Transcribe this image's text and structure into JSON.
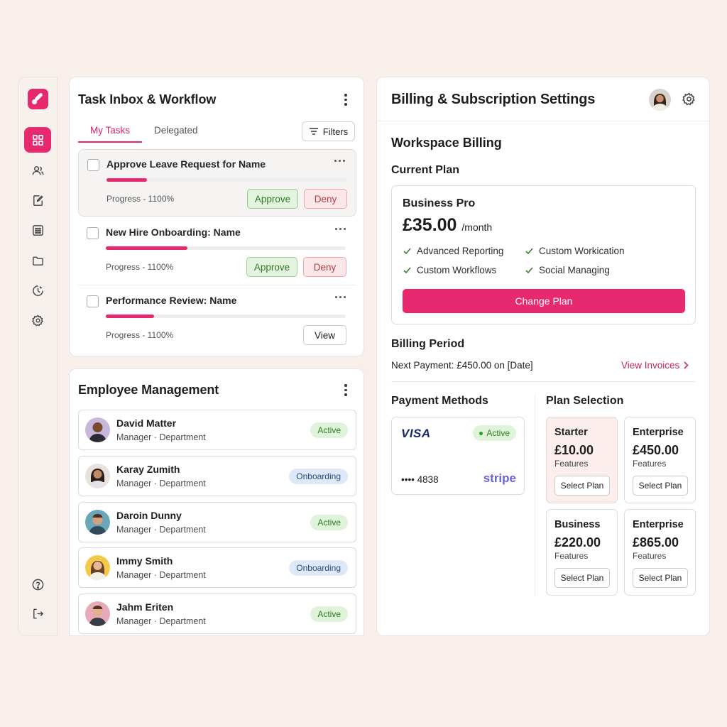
{
  "sidebar": {
    "items": [
      {
        "icon": "dashboard-icon",
        "active": true
      },
      {
        "icon": "users-icon"
      },
      {
        "icon": "tasks-icon"
      },
      {
        "icon": "calendar-icon"
      },
      {
        "icon": "folder-icon"
      },
      {
        "icon": "analytics-icon"
      },
      {
        "icon": "settings-icon"
      }
    ],
    "bottom": [
      {
        "icon": "help-icon"
      },
      {
        "icon": "logout-icon"
      }
    ]
  },
  "task_inbox": {
    "title": "Task Inbox & Workflow",
    "tabs": [
      {
        "label": "My Tasks",
        "active": true
      },
      {
        "label": "Delegated"
      }
    ],
    "filters_label": "Filters",
    "tasks": [
      {
        "title": "Approve Leave Request for Name",
        "progress_label": "Progress - 1100%",
        "progress": 0.17,
        "actions": [
          "Approve",
          "Deny"
        ]
      },
      {
        "title": "New Hire Onboarding: Name",
        "progress_label": "Progress - 1100%",
        "progress": 0.34,
        "actions": [
          "Approve",
          "Deny"
        ]
      },
      {
        "title": "Performance Review: Name",
        "progress_label": "Progress - 1100%",
        "progress": 0.2,
        "actions": [
          "View"
        ]
      }
    ]
  },
  "employees": {
    "title": "Employee Management",
    "list": [
      {
        "name": "David Matter",
        "role": "Manager · Department",
        "status": "Active"
      },
      {
        "name": "Karay Zumith",
        "role": "Manager · Department",
        "status": "Onboarding"
      },
      {
        "name": "Daroin Dunny",
        "role": "Manager · Department",
        "status": "Active"
      },
      {
        "name": "Immy Smith",
        "role": "Manager · Department",
        "status": "Onboarding"
      },
      {
        "name": "Jahm Eriten",
        "role": "Manager · Department",
        "status": "Active"
      }
    ]
  },
  "billing": {
    "title": "Billing & Subscription Settings",
    "section": "Workspace Billing",
    "current_plan_label": "Current Plan",
    "plan": {
      "name": "Business Pro",
      "price": "£35.00",
      "period": "/month",
      "features": [
        "Advanced Reporting",
        "Custom Workication",
        "Custom Workflows",
        "Social Managing"
      ],
      "change_label": "Change Plan"
    },
    "billing_period_label": "Billing Period",
    "next_payment": "Next Payment: £450.00 on [Date]",
    "view_invoices": "View Invoices",
    "payment_methods_label": "Payment Methods",
    "card": {
      "brand": "VISA",
      "status": "Active",
      "number": "•••• 4838",
      "processor": "stripe"
    },
    "plan_selection_label": "Plan Selection",
    "tiers": [
      {
        "name": "Starter",
        "price": "£10.00",
        "features": "Features",
        "button": "Select Plan",
        "selected": true
      },
      {
        "name": "Enterprise",
        "price": "£450.00",
        "features": "Features",
        "button": "Select Plan"
      },
      {
        "name": "Business",
        "price": "£220.00",
        "features": "Features",
        "button": "Select Plan"
      },
      {
        "name": "Enterprise",
        "price": "£865.00",
        "features": "Features",
        "button": "Select Plan"
      }
    ]
  },
  "colors": {
    "accent": "#e72a6f",
    "success": "#2f7a28",
    "danger": "#b43c47"
  }
}
